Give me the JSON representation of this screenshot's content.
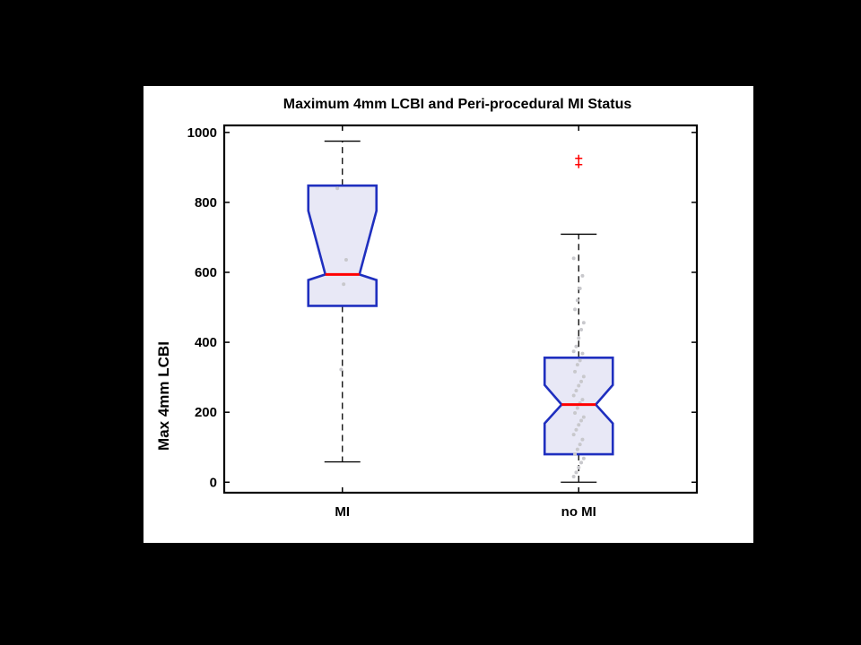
{
  "chart_data": {
    "type": "box",
    "title": "Maximum 4mm LCBI and Peri-procedural MI Status",
    "xlabel": "",
    "ylabel": "Max 4mm LCBI",
    "ylim": [
      -30,
      1020
    ],
    "yticks": [
      0,
      200,
      400,
      600,
      800,
      1000
    ],
    "categories": [
      "MI",
      "no MI"
    ],
    "notched": true,
    "grid": false,
    "boxes": [
      {
        "category": "MI",
        "whisker_low": 58,
        "q1": 504,
        "median": 594,
        "q3": 848,
        "whisker_high": 975,
        "notch_low": 578,
        "notch_high": 776,
        "outliers": [],
        "points": [
          840,
          636,
          566,
          322
        ]
      },
      {
        "category": "no MI",
        "whisker_low": 0,
        "q1": 80,
        "median": 222,
        "q3": 356,
        "whisker_high": 709,
        "notch_low": 168,
        "notch_high": 278,
        "outliers": [
          926,
          908
        ],
        "points": [
          640,
          590,
          554,
          520,
          494,
          456,
          436,
          412,
          388,
          374,
          368,
          348,
          336,
          316,
          302,
          288,
          276,
          262,
          248,
          236,
          226,
          212,
          198,
          186,
          176,
          164,
          150,
          136,
          122,
          108,
          94,
          80,
          68,
          56,
          42,
          28,
          16
        ]
      }
    ]
  },
  "colors": {
    "box_edge": "#1f2fbf",
    "box_fill": "#e8e8f6",
    "median": "#ff0000",
    "outlier": "#ff0000",
    "points": "#c8c8cc",
    "whisker": "#000000",
    "background": "#000000",
    "panel": "#ffffff"
  }
}
